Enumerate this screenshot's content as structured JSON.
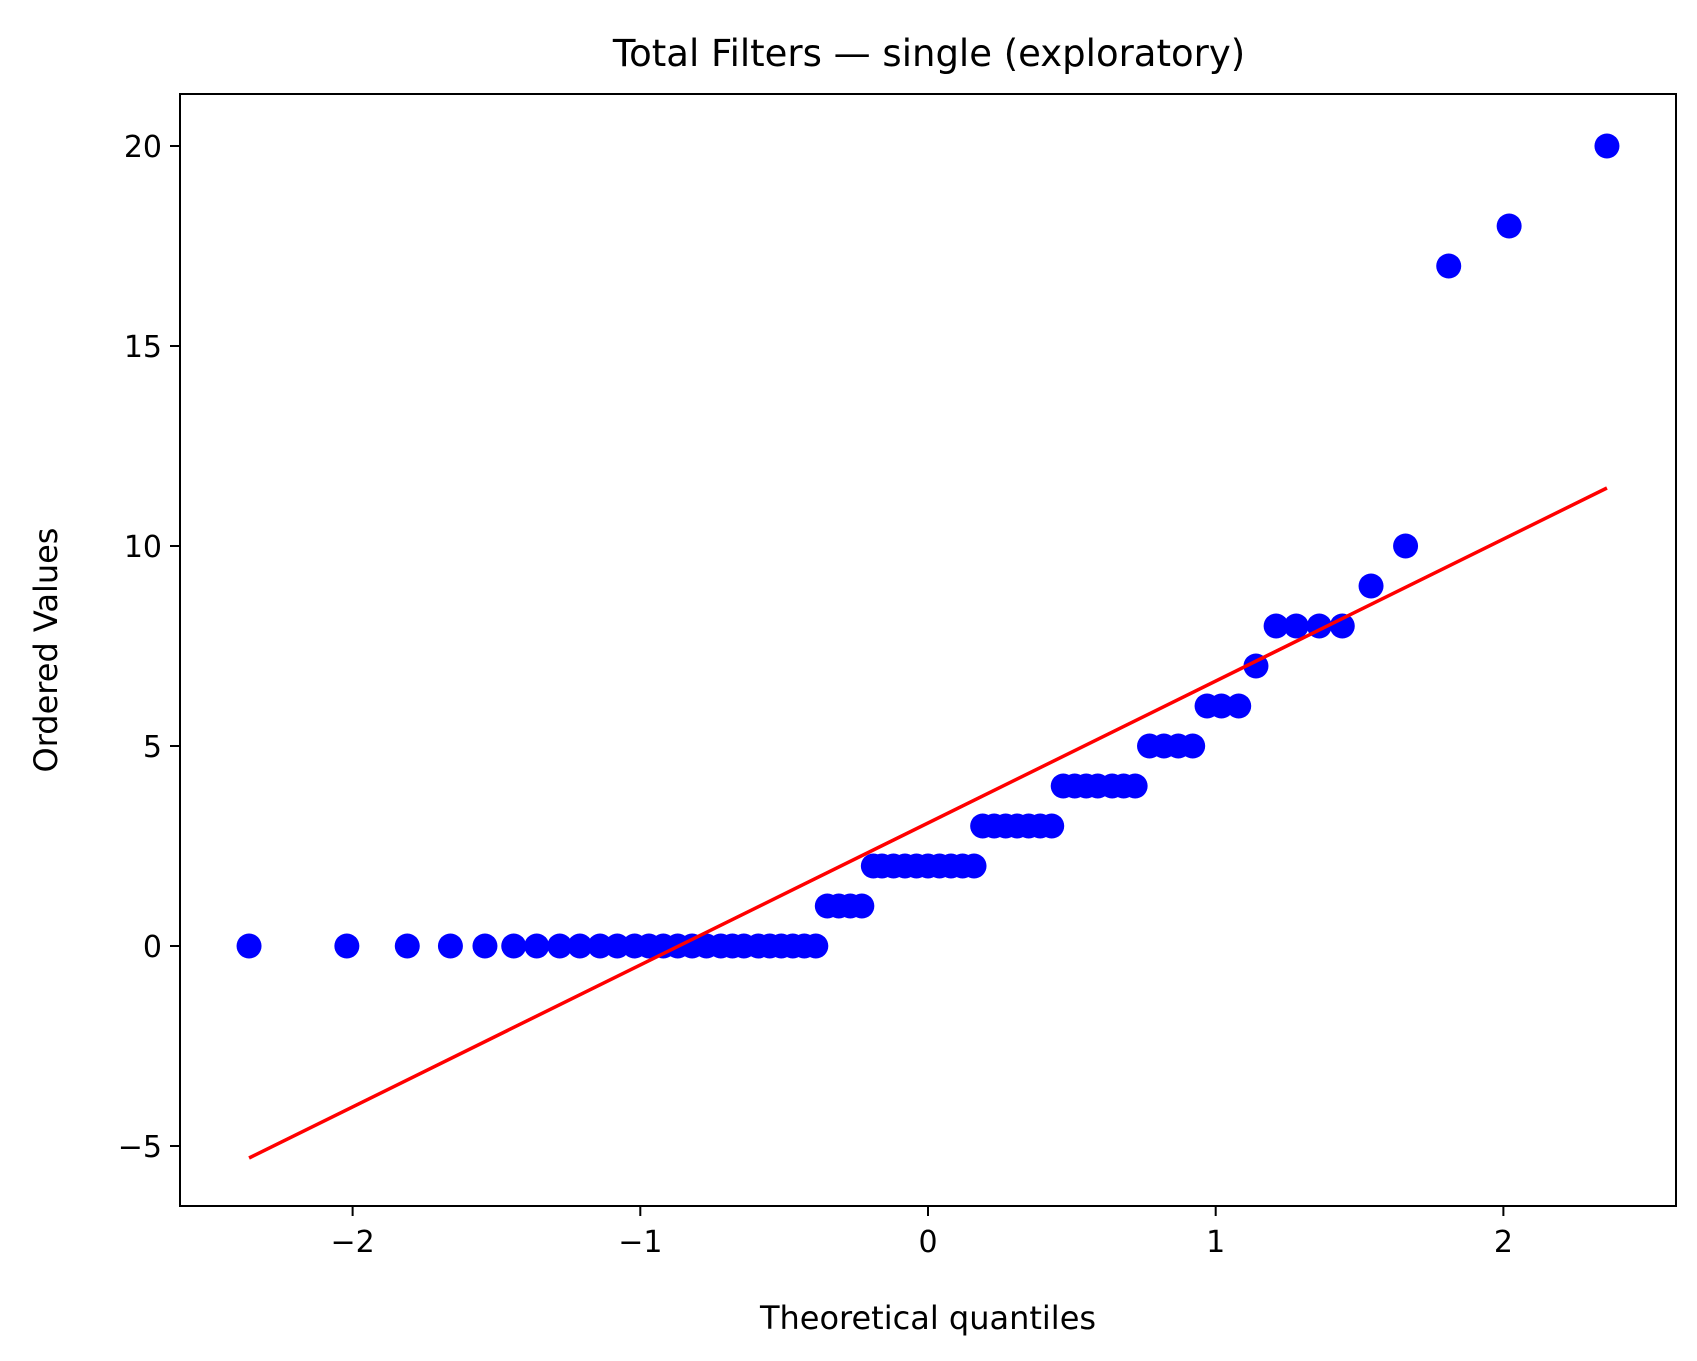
{
  "chart_data": {
    "type": "scatter",
    "title": "Total Filters — single (exploratory)",
    "xlabel": "Theoretical quantiles",
    "ylabel": "Ordered Values",
    "xlim": [
      -2.6,
      2.6
    ],
    "ylim": [
      -6.5,
      21.3
    ],
    "x_ticks": [
      -2,
      -1,
      0,
      1,
      2
    ],
    "y_ticks": [
      -5,
      0,
      5,
      10,
      15,
      20
    ],
    "x_tick_labels": [
      "−2",
      "−1",
      "0",
      "1",
      "2"
    ],
    "y_tick_labels": [
      "−5",
      "0",
      "5",
      "10",
      "15",
      "20"
    ],
    "grid": false,
    "series": [
      {
        "kind": "points",
        "color": "#0000ff",
        "points": [
          [
            -2.36,
            0
          ],
          [
            -2.02,
            0
          ],
          [
            -1.81,
            0
          ],
          [
            -1.66,
            0
          ],
          [
            -1.54,
            0
          ],
          [
            -1.44,
            0
          ],
          [
            -1.36,
            0
          ],
          [
            -1.28,
            0
          ],
          [
            -1.21,
            0
          ],
          [
            -1.14,
            0
          ],
          [
            -1.08,
            0
          ],
          [
            -1.02,
            0
          ],
          [
            -0.97,
            0
          ],
          [
            -0.92,
            0
          ],
          [
            -0.87,
            0
          ],
          [
            -0.82,
            0
          ],
          [
            -0.77,
            0
          ],
          [
            -0.72,
            0
          ],
          [
            -0.68,
            0
          ],
          [
            -0.64,
            0
          ],
          [
            -0.59,
            0
          ],
          [
            -0.55,
            0
          ],
          [
            -0.51,
            0
          ],
          [
            -0.47,
            0
          ],
          [
            -0.43,
            0
          ],
          [
            -0.39,
            0
          ],
          [
            -0.35,
            1
          ],
          [
            -0.31,
            1
          ],
          [
            -0.27,
            1
          ],
          [
            -0.23,
            1
          ],
          [
            -0.19,
            2
          ],
          [
            -0.16,
            2
          ],
          [
            -0.12,
            2
          ],
          [
            -0.08,
            2
          ],
          [
            -0.04,
            2
          ],
          [
            0.0,
            2
          ],
          [
            0.04,
            2
          ],
          [
            0.08,
            2
          ],
          [
            0.12,
            2
          ],
          [
            0.16,
            2
          ],
          [
            0.19,
            3
          ],
          [
            0.23,
            3
          ],
          [
            0.27,
            3
          ],
          [
            0.31,
            3
          ],
          [
            0.35,
            3
          ],
          [
            0.39,
            3
          ],
          [
            0.43,
            3
          ],
          [
            0.47,
            4
          ],
          [
            0.51,
            4
          ],
          [
            0.55,
            4
          ],
          [
            0.59,
            4
          ],
          [
            0.64,
            4
          ],
          [
            0.68,
            4
          ],
          [
            0.72,
            4
          ],
          [
            0.77,
            5
          ],
          [
            0.82,
            5
          ],
          [
            0.87,
            5
          ],
          [
            0.92,
            5
          ],
          [
            0.97,
            6
          ],
          [
            1.02,
            6
          ],
          [
            1.08,
            6
          ],
          [
            1.14,
            7
          ],
          [
            1.21,
            8
          ],
          [
            1.28,
            8
          ],
          [
            1.36,
            8
          ],
          [
            1.44,
            8
          ],
          [
            1.54,
            9
          ],
          [
            1.66,
            10
          ],
          [
            1.81,
            17
          ],
          [
            2.02,
            18
          ],
          [
            2.36,
            20
          ]
        ]
      },
      {
        "kind": "line",
        "color": "#ff0000",
        "points": [
          [
            -2.36,
            -5.3
          ],
          [
            2.36,
            11.45
          ]
        ]
      }
    ]
  }
}
